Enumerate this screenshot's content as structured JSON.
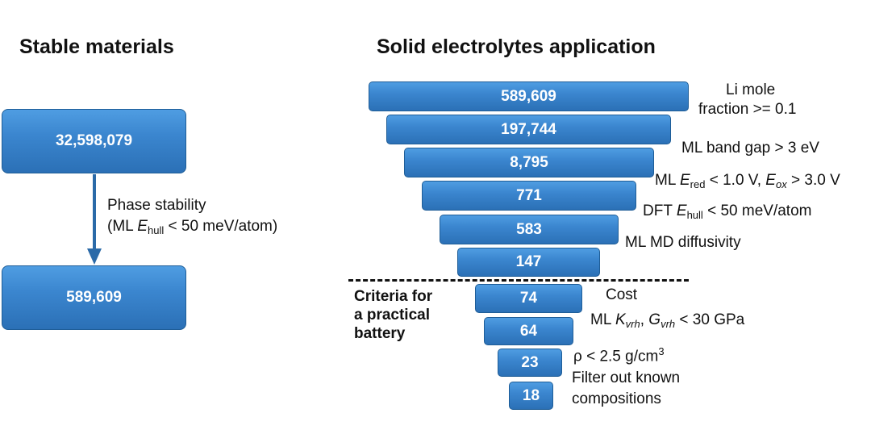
{
  "left": {
    "heading": "Stable materials",
    "top_box": "32,598,079",
    "transition_line1": "Phase stability",
    "transition_line2_pre": "(ML ",
    "transition_line2_var": "E",
    "transition_line2_sub": "hull",
    "transition_line2_post": " < 50 meV/atom)",
    "bottom_box": "589,609"
  },
  "right": {
    "heading": "Solid electrolytes application",
    "stages": [
      {
        "value": "589,609"
      },
      {
        "value": "197,744"
      },
      {
        "value": "8,795"
      },
      {
        "value": "771"
      },
      {
        "value": "583"
      },
      {
        "value": "147"
      },
      {
        "value": "74"
      },
      {
        "value": "64"
      },
      {
        "value": "23"
      },
      {
        "value": "18"
      }
    ],
    "criteria": {
      "li_line1": "Li mole",
      "li_line2": "fraction >= 0.1",
      "band_gap": "ML band gap > 3 eV",
      "redox_pre": "ML ",
      "redox_e1": "E",
      "redox_sub1": "red",
      "redox_mid": " < 1.0 V, ",
      "redox_e2": "E",
      "redox_sub2": "ox",
      "redox_post": " > 3.0 V",
      "dft_pre": "DFT ",
      "dft_e": "E",
      "dft_sub": "hull",
      "dft_post": " < 50 meV/atom",
      "diffusivity": "ML MD diffusivity",
      "cost": "Cost",
      "moduli_pre": "ML ",
      "moduli_k": "K",
      "moduli_ksub": "vrh",
      "moduli_sep": ", ",
      "moduli_g": "G",
      "moduli_gsub": "vrh",
      "moduli_post": " < 30 GPa",
      "density_pre": "ρ < 2.5 g/cm",
      "density_sup": "3",
      "known_line1": "Filter out known",
      "known_line2": "compositions"
    },
    "practical_label": [
      "Criteria for",
      "a practical",
      "battery"
    ]
  }
}
